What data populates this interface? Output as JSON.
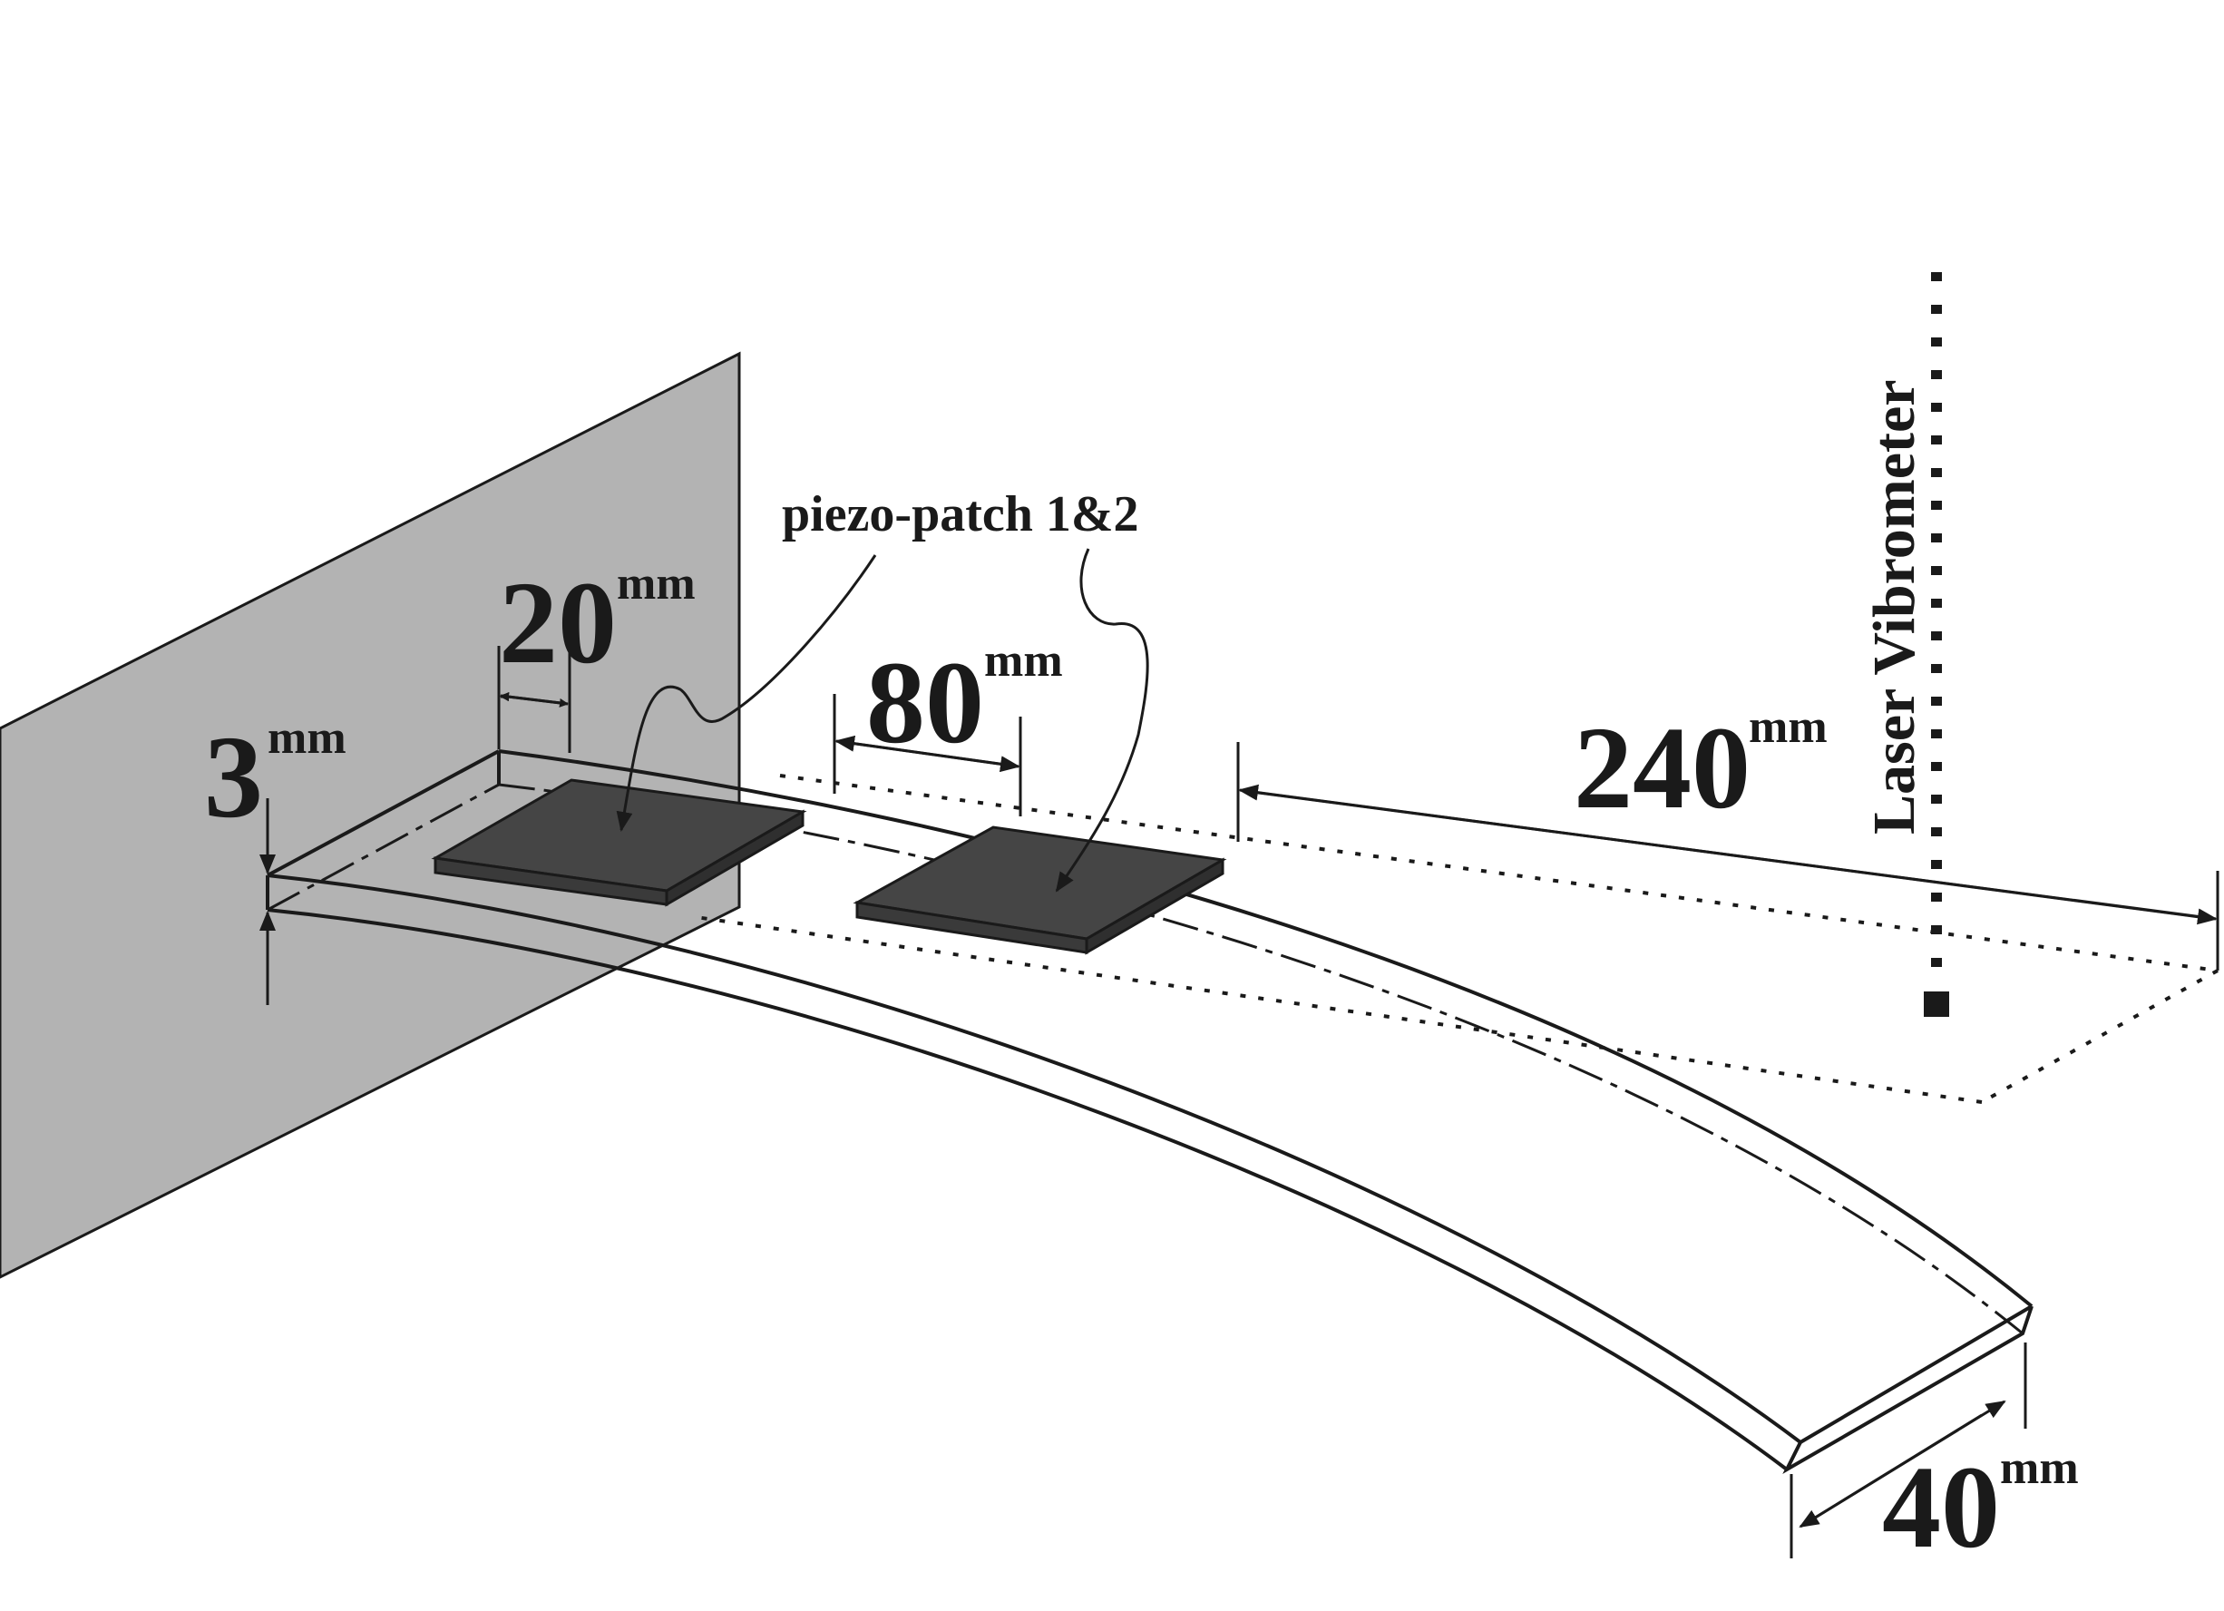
{
  "labels": {
    "piezo_patch": "piezo-patch 1&2",
    "laser": "Laser Vibrometer",
    "dim_3": "3",
    "dim_20": "20",
    "dim_80": "80",
    "dim_240": "240",
    "dim_40": "40",
    "unit": "mm"
  },
  "colors": {
    "wall": "#b3b3b3",
    "patch": "#454545",
    "stroke": "#1a1a1a",
    "background": "#ffffff"
  }
}
